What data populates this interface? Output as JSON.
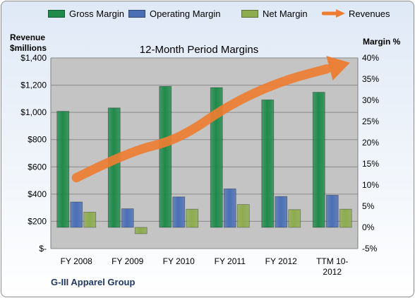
{
  "legend": [
    {
      "label": "Gross Margin",
      "color": "#1f8a4a",
      "kind": "bar"
    },
    {
      "label": "Operating Margin",
      "color": "#4a6fb5",
      "kind": "bar"
    },
    {
      "label": "Net Margin",
      "color": "#8dac4e",
      "kind": "bar"
    },
    {
      "label": "Revenues",
      "color": "#ed7d31",
      "kind": "arrow"
    }
  ],
  "left_axis_title": [
    "Revenue",
    "$millions"
  ],
  "right_axis_title": "Margin %",
  "company": "G-III Apparel Group",
  "chart_data": {
    "type": "bar",
    "title": "12-Month Period Margins",
    "categories": [
      "FY 2008",
      "FY 2009",
      "FY 2010",
      "FY 2011",
      "FY 2012",
      "TTM 10-2012"
    ],
    "category_labels": [
      [
        "FY 2008"
      ],
      [
        "FY 2009"
      ],
      [
        "FY 2010"
      ],
      [
        "FY 2011"
      ],
      [
        "FY 2012"
      ],
      [
        "TTM 10-",
        "2012"
      ]
    ],
    "y_left": {
      "label": "Revenue $millions",
      "ylim": [
        0,
        1400
      ],
      "ticks": [
        0,
        200,
        400,
        600,
        800,
        1000,
        1200,
        1400
      ],
      "tick_labels": [
        "$-",
        "$200",
        "$400",
        "$600",
        "$800",
        "$1,000",
        "$1,200",
        "$1,400"
      ]
    },
    "y_right": {
      "label": "Margin %",
      "ylim": [
        -5,
        40
      ],
      "ticks": [
        -5,
        0,
        5,
        10,
        15,
        20,
        25,
        30,
        35,
        40
      ],
      "tick_labels": [
        "-5%",
        "0%",
        "5%",
        "10%",
        "15%",
        "20%",
        "25%",
        "30%",
        "35%",
        "40%"
      ]
    },
    "series": [
      {
        "name": "Gross Margin",
        "axis": "right",
        "type": "bar",
        "color": "#1f8a4a",
        "values": [
          27.4,
          28.2,
          33.3,
          33.0,
          30.1,
          31.9
        ]
      },
      {
        "name": "Operating Margin",
        "axis": "right",
        "type": "bar",
        "color": "#4a6fb5",
        "values": [
          6.0,
          4.4,
          7.2,
          9.1,
          7.3,
          7.6
        ]
      },
      {
        "name": "Net Margin",
        "axis": "right",
        "type": "bar",
        "color": "#8dac4e",
        "values": [
          3.6,
          -1.5,
          4.3,
          5.4,
          4.2,
          4.3
        ]
      },
      {
        "name": "Revenues",
        "axis": "left",
        "type": "line",
        "color": "#ed7d31",
        "values": [
          520,
          710,
          800,
          1060,
          1230,
          1330
        ]
      }
    ],
    "grid": true,
    "legend_position": "top"
  }
}
